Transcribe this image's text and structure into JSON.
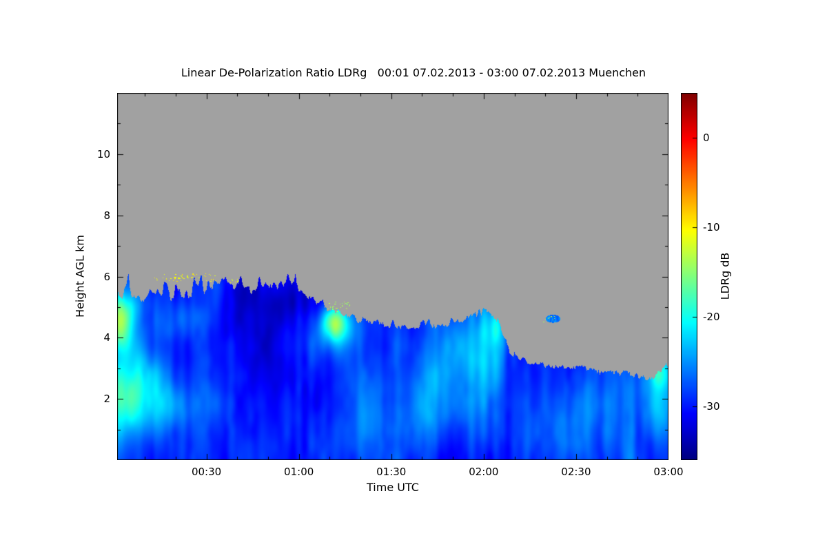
{
  "chart": {
    "title": "Linear De-Polarization Ratio LDRg   00:01 07.02.2013 - 03:00 07.02.2013 Muenchen",
    "xlabel": "Time UTC",
    "ylabel": "Height AGL km",
    "colorbar_label": "LDRg dB"
  },
  "chart_data": {
    "type": "heatmap",
    "title": "Linear De-Polarization Ratio LDRg 00:01 07.02.2013 - 03:00 07.02.2013 Muenchen",
    "station": "Muenchen",
    "date": "07.02.2013",
    "x_start_utc": "00:01",
    "x_end_utc": "03:00",
    "xlabel": "Time UTC",
    "ylabel": "Height AGL km",
    "zlabel": "LDRg dB",
    "x_range_minutes": [
      1,
      180
    ],
    "x_ticks": [
      {
        "minute": 30,
        "label": "00:30"
      },
      {
        "minute": 60,
        "label": "01:00"
      },
      {
        "minute": 90,
        "label": "01:30"
      },
      {
        "minute": 120,
        "label": "02:00"
      },
      {
        "minute": 150,
        "label": "02:30"
      },
      {
        "minute": 180,
        "label": "03:00"
      }
    ],
    "x_minor_tick_minutes": 10,
    "y_range_km": [
      0,
      12
    ],
    "y_ticks": [
      {
        "km": 2,
        "label": "2"
      },
      {
        "km": 4,
        "label": "4"
      },
      {
        "km": 6,
        "label": "6"
      },
      {
        "km": 8,
        "label": "8"
      },
      {
        "km": 10,
        "label": "10"
      }
    ],
    "y_minor_tick_km": 1,
    "value_range_db": [
      -36,
      5
    ],
    "colorbar_ticks": [
      {
        "db": 0,
        "label": "0"
      },
      {
        "db": -10,
        "label": "-10"
      },
      {
        "db": -20,
        "label": "-20"
      },
      {
        "db": -30,
        "label": "-30"
      }
    ],
    "colormap": "jet",
    "nodata_color": "#a1a1a1",
    "cloud": {
      "interior_base_db": -29,
      "top_profile": [
        [
          1,
          5.25
        ],
        [
          4,
          5.45
        ],
        [
          8,
          5.15
        ],
        [
          12,
          5.3
        ],
        [
          16,
          5.2
        ],
        [
          20,
          5.25
        ],
        [
          24,
          5.2
        ],
        [
          28,
          5.3
        ],
        [
          32,
          5.4
        ],
        [
          36,
          5.45
        ],
        [
          40,
          5.4
        ],
        [
          44,
          5.55
        ],
        [
          48,
          5.65
        ],
        [
          52,
          5.6
        ],
        [
          56,
          5.7
        ],
        [
          60,
          5.55
        ],
        [
          63,
          5.3
        ],
        [
          66,
          5.15
        ],
        [
          69,
          4.95
        ],
        [
          72,
          4.85
        ],
        [
          75,
          4.75
        ],
        [
          79,
          4.6
        ],
        [
          84,
          4.5
        ],
        [
          89,
          4.35
        ],
        [
          94,
          4.3
        ],
        [
          99,
          4.28
        ],
        [
          104,
          4.32
        ],
        [
          109,
          4.4
        ],
        [
          113,
          4.5
        ],
        [
          116,
          4.75
        ],
        [
          119,
          4.85
        ],
        [
          122,
          4.7
        ],
        [
          125,
          4.45
        ],
        [
          127,
          3.9
        ],
        [
          129,
          3.45
        ],
        [
          132,
          3.25
        ],
        [
          136,
          3.1
        ],
        [
          140,
          3.05
        ],
        [
          145,
          3.0
        ],
        [
          150,
          3.0
        ],
        [
          155,
          2.95
        ],
        [
          160,
          2.9
        ],
        [
          165,
          2.82
        ],
        [
          169,
          2.72
        ],
        [
          172,
          2.6
        ],
        [
          175,
          2.62
        ],
        [
          177,
          2.8
        ],
        [
          179,
          3.05
        ],
        [
          180,
          3.1
        ]
      ],
      "spike_regions": [
        [
          0,
          68,
          0.5
        ],
        [
          68,
          126,
          0.22
        ],
        [
          126,
          181,
          0.14
        ]
      ],
      "features": [
        [
          2,
          4.3,
          3,
          0.55,
          12
        ],
        [
          3,
          5.0,
          4,
          0.4,
          6
        ],
        [
          3,
          2.0,
          5,
          0.9,
          8
        ],
        [
          9,
          2.8,
          6,
          0.9,
          5
        ],
        [
          15,
          1.7,
          7,
          0.6,
          4
        ],
        [
          20,
          4.6,
          8,
          0.5,
          3
        ],
        [
          35,
          2.0,
          12,
          1.3,
          2
        ],
        [
          50,
          3.8,
          14,
          1.6,
          -2.5
        ],
        [
          57,
          5.2,
          10,
          0.6,
          -3
        ],
        [
          71.5,
          4.55,
          3,
          0.4,
          12
        ],
        [
          73,
          4.1,
          5,
          0.5,
          5
        ],
        [
          88,
          1.2,
          10,
          0.9,
          2.5
        ],
        [
          100,
          1.6,
          8,
          0.9,
          3
        ],
        [
          106,
          2.9,
          5,
          1.2,
          3.5
        ],
        [
          113,
          3.7,
          6,
          0.8,
          3
        ],
        [
          120.5,
          3.3,
          4,
          1.3,
          4.5
        ],
        [
          124,
          4.3,
          3,
          0.5,
          4
        ],
        [
          150,
          1.0,
          14,
          0.8,
          2
        ],
        [
          165,
          2.2,
          9,
          0.9,
          2.5
        ],
        [
          177.5,
          2.9,
          2.5,
          0.45,
          8
        ],
        [
          178,
          1.3,
          3,
          0.9,
          4
        ]
      ],
      "speckle_sets": [
        [
          13,
          33,
          5.98,
          0.13,
          55,
          -10.5
        ],
        [
          36,
          41,
          5.85,
          0.08,
          8,
          -11
        ],
        [
          69,
          77,
          5.0,
          0.18,
          30,
          -14
        ],
        [
          139,
          144,
          4.62,
          0.1,
          8,
          -13
        ]
      ],
      "isolated_blobs": [
        [
          142.5,
          4.62,
          2.4,
          0.13,
          -26
        ]
      ]
    }
  }
}
